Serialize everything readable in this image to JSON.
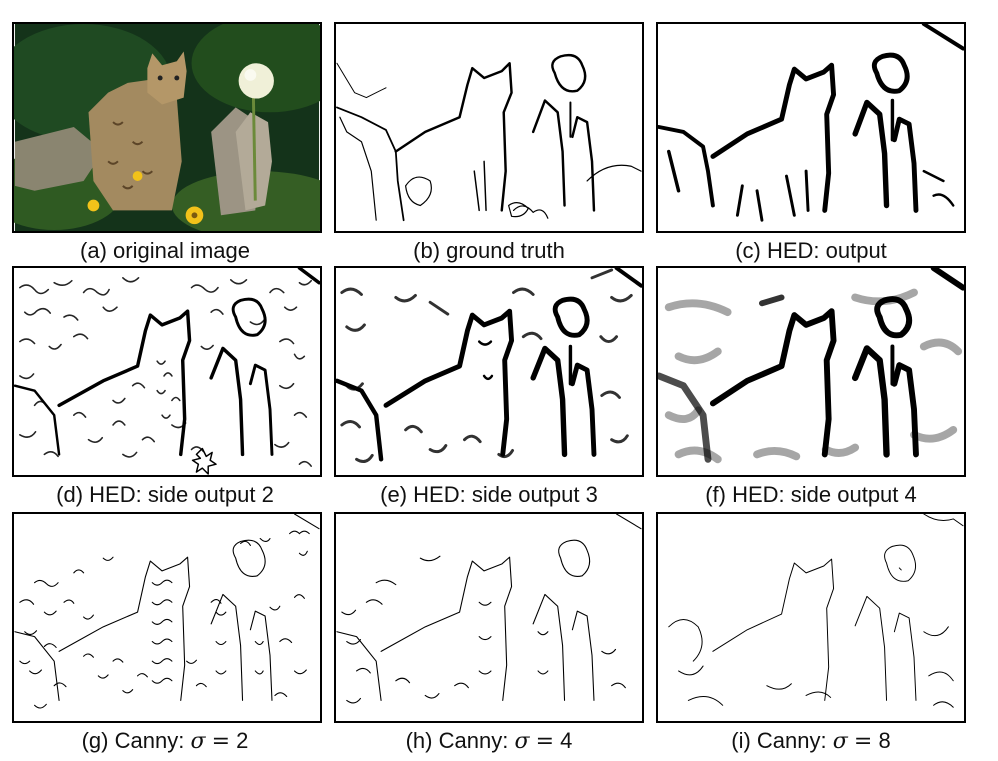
{
  "panels": [
    {
      "id": "a",
      "caption": "(a) original image"
    },
    {
      "id": "b",
      "caption": "(b) ground truth"
    },
    {
      "id": "c",
      "caption": "(c) HED: output"
    },
    {
      "id": "d",
      "caption": "(d) HED: side output 2"
    },
    {
      "id": "e",
      "caption": "(e) HED: side output 3"
    },
    {
      "id": "f",
      "caption": "(f) HED: side output 4"
    },
    {
      "id": "g",
      "caption_prefix": "(g) Canny:",
      "sigma_symbol": "σ",
      "equals": "=",
      "sigma_value": "2"
    },
    {
      "id": "h",
      "caption_prefix": "(h) Canny:",
      "sigma_symbol": "σ",
      "equals": "=",
      "sigma_value": "4"
    },
    {
      "id": "i",
      "caption_prefix": "(i) Canny:",
      "sigma_symbol": "σ",
      "equals": "=",
      "sigma_value": "8"
    }
  ],
  "colors": {
    "photo_background": "#14331a",
    "photo_foliage": "#2f5a22",
    "bobcat": "#a38a60",
    "flower": "#f0f0d8",
    "yellow_flowers": "#f2c21a",
    "edge_ink": "#000000"
  }
}
